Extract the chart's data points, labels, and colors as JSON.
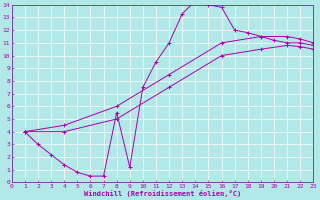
{
  "xlabel": "Windchill (Refroidissement éolien,°C)",
  "bg_color": "#b2e8e8",
  "line_color": "#aa00aa",
  "grid_color": "#ffffff",
  "spine_color": "#7744aa",
  "xlim": [
    0,
    23
  ],
  "ylim": [
    0,
    14
  ],
  "xticks": [
    0,
    1,
    2,
    3,
    4,
    5,
    6,
    7,
    8,
    9,
    10,
    11,
    12,
    13,
    14,
    15,
    16,
    17,
    18,
    19,
    20,
    21,
    22,
    23
  ],
  "yticks": [
    0,
    1,
    2,
    3,
    4,
    5,
    6,
    7,
    8,
    9,
    10,
    11,
    12,
    13,
    14
  ],
  "curve1_x": [
    1,
    2,
    3,
    4,
    5,
    6,
    7,
    8,
    9,
    10,
    11,
    12,
    13,
    14,
    15,
    16,
    17,
    18,
    19,
    20,
    21,
    22,
    23
  ],
  "curve1_y": [
    4.0,
    3.0,
    2.2,
    1.4,
    0.8,
    0.5,
    0.5,
    5.5,
    1.2,
    7.5,
    9.5,
    11.0,
    13.3,
    14.3,
    14.0,
    13.8,
    12.0,
    11.8,
    11.5,
    11.2,
    11.0,
    11.0,
    10.8
  ],
  "curve2_x": [
    1,
    4,
    8,
    12,
    16,
    19,
    21,
    22,
    23
  ],
  "curve2_y": [
    4.0,
    4.5,
    6.0,
    8.5,
    11.0,
    11.5,
    11.5,
    11.3,
    11.0
  ],
  "curve3_x": [
    1,
    4,
    8,
    12,
    16,
    19,
    21,
    22,
    23
  ],
  "curve3_y": [
    4.0,
    4.0,
    5.0,
    7.5,
    10.0,
    10.5,
    10.8,
    10.7,
    10.5
  ]
}
